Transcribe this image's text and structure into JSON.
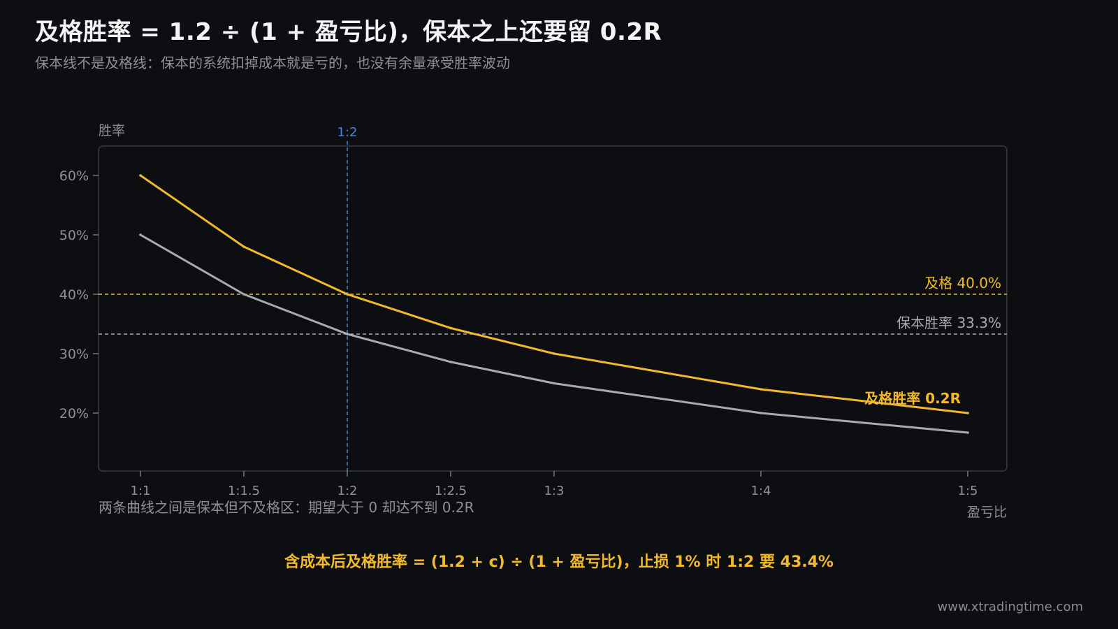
{
  "header": {
    "title": "及格胜率 = 1.2 ÷ (1 + 盈亏比)，保本之上还要留 0.2R",
    "subtitle": "保本线不是及格线：保本的系统扣掉成本就是亏的，也没有余量承受胜率波动"
  },
  "footer": {
    "note": "含成本后及格胜率 = (1.2 + c) ÷ (1 + 盈亏比)，止损 1% 时 1:2 要 43.4%",
    "watermark": "www.xtradingtime.com"
  },
  "colors": {
    "background": "#0d0e12",
    "pass_line": "#f2b92a",
    "breakeven_line": "#a9aab0",
    "marker": "#4f86d9",
    "frame": "#3a3b40",
    "tick_text": "#8f9096"
  },
  "chart_data": {
    "type": "line",
    "ylabel": "胜率",
    "xlabel": "盈亏比",
    "x": [
      1,
      1.5,
      2,
      2.5,
      3,
      4,
      5
    ],
    "x_tick_labels": [
      "1:1",
      "1:1.5",
      "1:2",
      "1:2.5",
      "1:3",
      "1:4",
      "1:5"
    ],
    "xlim": [
      0.8,
      5.2
    ],
    "ylim": [
      10,
      65
    ],
    "y_ticks": [
      20,
      30,
      40,
      50,
      60
    ],
    "y_tick_labels": [
      "20%",
      "30%",
      "40%",
      "50%",
      "60%"
    ],
    "series": [
      {
        "name": "及格胜率 0.2R",
        "color": "#f2b92a",
        "values": [
          60.0,
          48.0,
          40.0,
          34.3,
          30.0,
          24.0,
          20.0
        ]
      },
      {
        "name": "",
        "color": "#a9aab0",
        "values": [
          50.0,
          40.0,
          33.3,
          28.6,
          25.0,
          20.0,
          16.7
        ]
      }
    ],
    "reference_lines": [
      {
        "axis": "y",
        "value": 40.0,
        "label": "及格 40.0%",
        "color": "#f2b92a",
        "style": "dashed"
      },
      {
        "axis": "y",
        "value": 33.3,
        "label": "保本胜率 33.3%",
        "color": "#a9aab0",
        "style": "dashed"
      },
      {
        "axis": "x",
        "value": 2,
        "label": "1:2",
        "color": "#4f86d9",
        "style": "dashed"
      }
    ],
    "annotation": "两条曲线之间是保本但不及格区：期望大于 0 却达不到 0.2R",
    "grid": false,
    "legend": "none"
  }
}
